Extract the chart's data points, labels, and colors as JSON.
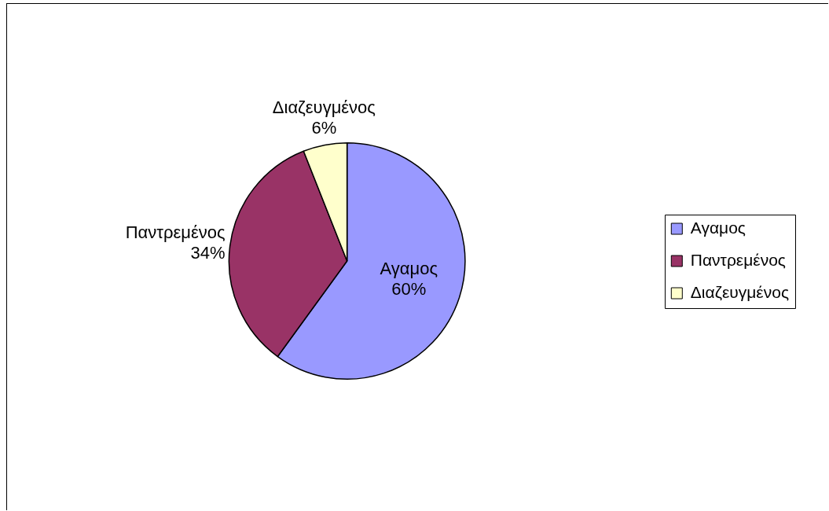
{
  "chart_data": {
    "type": "pie",
    "categories": [
      "Αγαμος",
      "Παντρεμένος",
      "Διαζευγμένος"
    ],
    "values": [
      60,
      34,
      6
    ],
    "colors": [
      "#9999ff",
      "#993366",
      "#ffffcc"
    ],
    "value_labels": [
      "60%",
      "34%",
      "6%"
    ],
    "legend": "right"
  }
}
